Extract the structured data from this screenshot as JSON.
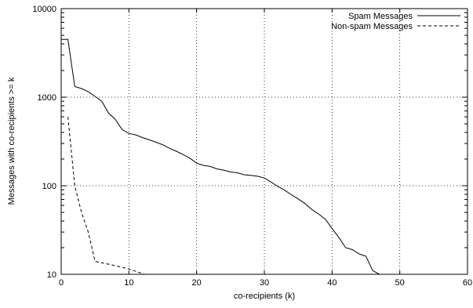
{
  "chart_data": {
    "type": "line",
    "title": "",
    "xlabel": "co-recipients (k)",
    "ylabel": "Messages with co-recipients >= k",
    "xlim": [
      0,
      60
    ],
    "ylim": [
      10,
      10000
    ],
    "y_scale": "log",
    "grid": true,
    "legend_position": "top-right",
    "x_ticks": [
      "0",
      "10",
      "20",
      "30",
      "40",
      "50",
      "60"
    ],
    "y_ticks": [
      "10",
      "100",
      "1000",
      "10000"
    ],
    "series": [
      {
        "name": "Spam Messages",
        "dash": "solid",
        "color": "#000000",
        "points": [
          [
            0,
            4500
          ],
          [
            1,
            4500
          ],
          [
            2,
            1320
          ],
          [
            3,
            1250
          ],
          [
            4,
            1150
          ],
          [
            5,
            1020
          ],
          [
            6,
            900
          ],
          [
            7,
            660
          ],
          [
            8,
            560
          ],
          [
            9,
            430
          ],
          [
            10,
            390
          ],
          [
            11,
            375
          ],
          [
            12,
            350
          ],
          [
            13,
            330
          ],
          [
            14,
            310
          ],
          [
            15,
            290
          ],
          [
            16,
            265
          ],
          [
            17,
            245
          ],
          [
            18,
            225
          ],
          [
            19,
            205
          ],
          [
            20,
            180
          ],
          [
            21,
            170
          ],
          [
            22,
            165
          ],
          [
            23,
            155
          ],
          [
            24,
            150
          ],
          [
            25,
            143
          ],
          [
            26,
            140
          ],
          [
            27,
            133
          ],
          [
            28,
            131
          ],
          [
            29,
            128
          ],
          [
            30,
            122
          ],
          [
            31,
            110
          ],
          [
            32,
            98
          ],
          [
            33,
            89
          ],
          [
            34,
            79
          ],
          [
            35,
            71
          ],
          [
            36,
            63
          ],
          [
            37,
            54
          ],
          [
            38,
            48
          ],
          [
            39,
            42
          ],
          [
            40,
            33
          ],
          [
            41,
            26
          ],
          [
            42,
            20
          ],
          [
            43,
            19
          ],
          [
            44,
            17
          ],
          [
            45,
            16
          ],
          [
            46,
            11
          ],
          [
            47,
            10
          ]
        ]
      },
      {
        "name": "Non-spam Messages",
        "dash": "dashed",
        "color": "#000000",
        "points": [
          [
            1,
            600
          ],
          [
            2,
            100
          ],
          [
            3,
            50
          ],
          [
            4,
            30
          ],
          [
            5,
            14
          ],
          [
            6,
            13.5
          ],
          [
            7,
            13
          ],
          [
            8,
            12.5
          ],
          [
            9,
            12
          ],
          [
            10,
            11.5
          ],
          [
            11,
            10.8
          ],
          [
            12,
            10.2
          ],
          [
            12.3,
            10
          ]
        ]
      }
    ]
  }
}
